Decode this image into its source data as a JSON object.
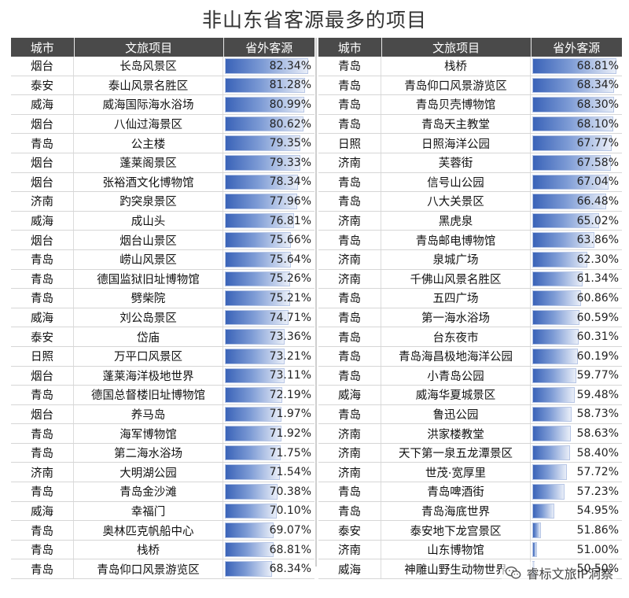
{
  "title": "非山东省客源最多的项目",
  "headers": {
    "city": "城市",
    "project": "文旅项目",
    "pct": "省外客源"
  },
  "watermark": "睿标文旅IP洞察",
  "colors": {
    "header_bg": "#4a4a4a",
    "bar_dark": "#3a63b8",
    "bar_light": "#e9eef8"
  },
  "chart_data": [
    {
      "type": "bar",
      "title": "非山东省客源最多的项目",
      "ylabel": "省外客源",
      "xlim": [
        50,
        83
      ],
      "columns": [
        "城市",
        "文旅项目",
        "省外客源"
      ],
      "rows": [
        {
          "city": "烟台",
          "project": "长岛风景区",
          "value": 82.34
        },
        {
          "city": "泰安",
          "project": "泰山风景名胜区",
          "value": 81.28
        },
        {
          "city": "威海",
          "project": "威海国际海水浴场",
          "value": 80.99
        },
        {
          "city": "烟台",
          "project": "八仙过海景区",
          "value": 80.62
        },
        {
          "city": "青岛",
          "project": "公主楼",
          "value": 79.35
        },
        {
          "city": "烟台",
          "project": "蓬莱阁景区",
          "value": 79.33
        },
        {
          "city": "烟台",
          "project": "张裕酒文化博物馆",
          "value": 78.34
        },
        {
          "city": "济南",
          "project": "趵突泉景区",
          "value": 77.96
        },
        {
          "city": "威海",
          "project": "成山头",
          "value": 76.81
        },
        {
          "city": "烟台",
          "project": "烟台山景区",
          "value": 75.66
        },
        {
          "city": "青岛",
          "project": "崂山风景区",
          "value": 75.64
        },
        {
          "city": "青岛",
          "project": "德国监狱旧址博物馆",
          "value": 75.26
        },
        {
          "city": "青岛",
          "project": "劈柴院",
          "value": 75.21
        },
        {
          "city": "威海",
          "project": "刘公岛景区",
          "value": 74.71
        },
        {
          "city": "泰安",
          "project": "岱庙",
          "value": 73.36
        },
        {
          "city": "日照",
          "project": "万平口风景区",
          "value": 73.21
        },
        {
          "city": "烟台",
          "project": "蓬莱海洋极地世界",
          "value": 73.11
        },
        {
          "city": "青岛",
          "project": "德国总督楼旧址博物馆",
          "value": 72.19
        },
        {
          "city": "烟台",
          "project": "养马岛",
          "value": 71.97
        },
        {
          "city": "青岛",
          "project": "海军博物馆",
          "value": 71.92
        },
        {
          "city": "青岛",
          "project": "第二海水浴场",
          "value": 71.75
        },
        {
          "city": "济南",
          "project": "大明湖公园",
          "value": 71.54
        },
        {
          "city": "青岛",
          "project": "青岛金沙滩",
          "value": 70.38
        },
        {
          "city": "威海",
          "project": "幸福门",
          "value": 70.1
        },
        {
          "city": "青岛",
          "project": "奥林匹克帆船中心",
          "value": 69.07
        },
        {
          "city": "青岛",
          "project": "栈桥",
          "value": 68.81
        },
        {
          "city": "青岛",
          "project": "青岛仰口风景游览区",
          "value": 68.34
        }
      ]
    },
    {
      "type": "bar",
      "title": "",
      "ylabel": "省外客源",
      "xlim": [
        50,
        69
      ],
      "columns": [
        "城市",
        "文旅项目",
        "省外客源"
      ],
      "rows": [
        {
          "city": "青岛",
          "project": "栈桥",
          "value": 68.81
        },
        {
          "city": "青岛",
          "project": "青岛仰口风景游览区",
          "value": 68.34
        },
        {
          "city": "青岛",
          "project": "青岛贝壳博物馆",
          "value": 68.3
        },
        {
          "city": "青岛",
          "project": "青岛天主教堂",
          "value": 68.1
        },
        {
          "city": "日照",
          "project": "日照海洋公园",
          "value": 67.77
        },
        {
          "city": "济南",
          "project": "芙蓉街",
          "value": 67.58
        },
        {
          "city": "青岛",
          "project": "信号山公园",
          "value": 67.04
        },
        {
          "city": "青岛",
          "project": "八大关景区",
          "value": 66.48
        },
        {
          "city": "济南",
          "project": "黑虎泉",
          "value": 65.02
        },
        {
          "city": "青岛",
          "project": "青岛邮电博物馆",
          "value": 63.86
        },
        {
          "city": "济南",
          "project": "泉城广场",
          "value": 62.3
        },
        {
          "city": "济南",
          "project": "千佛山风景名胜区",
          "value": 61.34
        },
        {
          "city": "青岛",
          "project": "五四广场",
          "value": 60.86
        },
        {
          "city": "青岛",
          "project": "第一海水浴场",
          "value": 60.59
        },
        {
          "city": "青岛",
          "project": "台东夜市",
          "value": 60.31
        },
        {
          "city": "青岛",
          "project": "青岛海昌极地海洋公园",
          "value": 60.19
        },
        {
          "city": "青岛",
          "project": "小青岛公园",
          "value": 59.77
        },
        {
          "city": "威海",
          "project": "威海华夏城景区",
          "value": 59.48
        },
        {
          "city": "青岛",
          "project": "鲁迅公园",
          "value": 58.73
        },
        {
          "city": "济南",
          "project": "洪家楼教堂",
          "value": 58.63
        },
        {
          "city": "济南",
          "project": "天下第一泉五龙潭景区",
          "value": 58.4
        },
        {
          "city": "济南",
          "project": "世茂·宽厚里",
          "value": 57.72
        },
        {
          "city": "青岛",
          "project": "青岛啤酒街",
          "value": 57.23
        },
        {
          "city": "青岛",
          "project": "青岛海底世界",
          "value": 54.95
        },
        {
          "city": "泰安",
          "project": "泰安地下龙宫景区",
          "value": 51.86
        },
        {
          "city": "济南",
          "project": "山东博物馆",
          "value": 51.0
        },
        {
          "city": "威海",
          "project": "神雕山野生动物世界",
          "value": 50.5
        }
      ]
    }
  ]
}
